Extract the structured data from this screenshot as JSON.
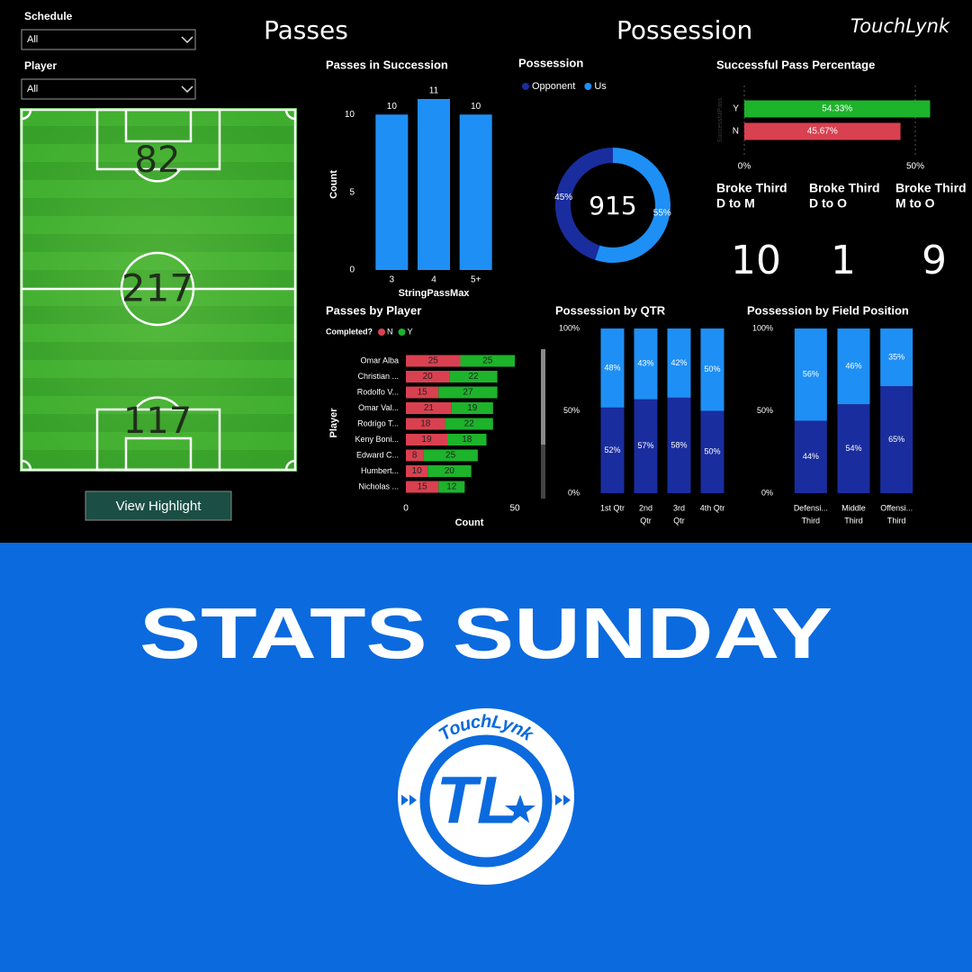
{
  "header": {
    "passes_title": "Passes",
    "possession_title": "Possession",
    "brand": "TouchLynk"
  },
  "filters": [
    {
      "label": "Schedule",
      "value": "All"
    },
    {
      "label": "Player",
      "value": "All"
    }
  ],
  "field": {
    "top_count": 82,
    "center_count": 217,
    "bottom_count": 117,
    "button": "View Highlight"
  },
  "kpis": [
    {
      "title": "Broke Third",
      "subtitle": "D to M",
      "value": 10
    },
    {
      "title": "Broke Third",
      "subtitle": "D to O",
      "value": 1
    },
    {
      "title": "Broke Third",
      "subtitle": "M to O",
      "value": 9
    }
  ],
  "chart_data": [
    {
      "type": "bar",
      "title": "Passes in Succession",
      "x_label": "StringPassMax",
      "y_label": "Count",
      "categories": [
        "3",
        "4",
        "5+"
      ],
      "values": [
        10,
        11,
        10
      ],
      "color": "#1e8ff5",
      "ylim": [
        0,
        11
      ],
      "yticks": [
        0,
        5,
        10
      ]
    },
    {
      "type": "donut",
      "title": "Possession",
      "categories": [
        "Opponent",
        "Us"
      ],
      "values": [
        45,
        55
      ],
      "value_labels": [
        "45%",
        "55%"
      ],
      "colors": [
        "#1a2d9e",
        "#1e8ff5"
      ],
      "center_value": 915
    },
    {
      "type": "hbar",
      "title": "Successful Pass Percentage",
      "y_label": "SuccessfulPass",
      "categories": [
        "Y",
        "N"
      ],
      "values": [
        54.33,
        45.67
      ],
      "value_labels": [
        "54.33%",
        "45.67%"
      ],
      "colors": [
        "#1db32b",
        "#d94150"
      ],
      "xlim": [
        0,
        55
      ],
      "xticks": [
        {
          "value": 0,
          "label": "0%"
        },
        {
          "value": 50,
          "label": "50%"
        }
      ],
      "grid": true
    },
    {
      "type": "stacked_hbar",
      "title": "Passes by Player",
      "legend_title": "Completed?",
      "x_label": "Count",
      "y_label": "Player",
      "categories": [
        "Omar Alba",
        "Christian ...",
        "Rodolfo V...",
        "Omar Val...",
        "Rodrigo T...",
        "Keny Boni...",
        "Edward C...",
        "Humbert...",
        "Nicholas ..."
      ],
      "series": [
        {
          "name": "N",
          "color": "#d94150",
          "values": [
            25,
            20,
            15,
            21,
            18,
            19,
            8,
            10,
            15
          ]
        },
        {
          "name": "Y",
          "color": "#1db32b",
          "values": [
            25,
            22,
            27,
            19,
            22,
            18,
            25,
            20,
            12
          ]
        }
      ],
      "xlim": [
        0,
        50
      ],
      "xticks": [
        0,
        50
      ]
    },
    {
      "type": "stacked_bar",
      "title": "Possession by QTR",
      "categories": [
        [
          "1st Qtr"
        ],
        [
          "2nd",
          "Qtr"
        ],
        [
          "3rd",
          "Qtr"
        ],
        [
          "4th Qtr"
        ]
      ],
      "series": [
        {
          "color": "#1a2d9e",
          "values": [
            52,
            57,
            58,
            50
          ],
          "value_labels": [
            "52%",
            "57%",
            "58%",
            "50%"
          ]
        },
        {
          "color": "#1e8ff5",
          "values": [
            48,
            43,
            42,
            50
          ],
          "value_labels": [
            "48%",
            "43%",
            "42%",
            "50%"
          ]
        }
      ],
      "ylim": [
        0,
        100
      ],
      "yticks": [
        {
          "value": 0,
          "label": "0%"
        },
        {
          "value": 50,
          "label": "50%"
        },
        {
          "value": 100,
          "label": "100%"
        }
      ]
    },
    {
      "type": "stacked_bar",
      "title": "Possession by Field Position",
      "categories": [
        [
          "Defensi...",
          "Third"
        ],
        [
          "Middle",
          "Third"
        ],
        [
          "Offensi...",
          "Third"
        ]
      ],
      "series": [
        {
          "color": "#1a2d9e",
          "values": [
            44,
            54,
            65
          ],
          "value_labels": [
            "44%",
            "54%",
            "65%"
          ]
        },
        {
          "color": "#1e8ff5",
          "values": [
            56,
            46,
            35
          ],
          "value_labels": [
            "56%",
            "46%",
            "35%"
          ]
        }
      ],
      "ylim": [
        0,
        100
      ],
      "yticks": [
        {
          "value": 0,
          "label": "0%"
        },
        {
          "value": 50,
          "label": "50%"
        },
        {
          "value": 100,
          "label": "100%"
        }
      ]
    }
  ],
  "footer": {
    "title": "STATS SUNDAY",
    "logo_text": "TouchLynk",
    "logo_mark": "TL"
  }
}
